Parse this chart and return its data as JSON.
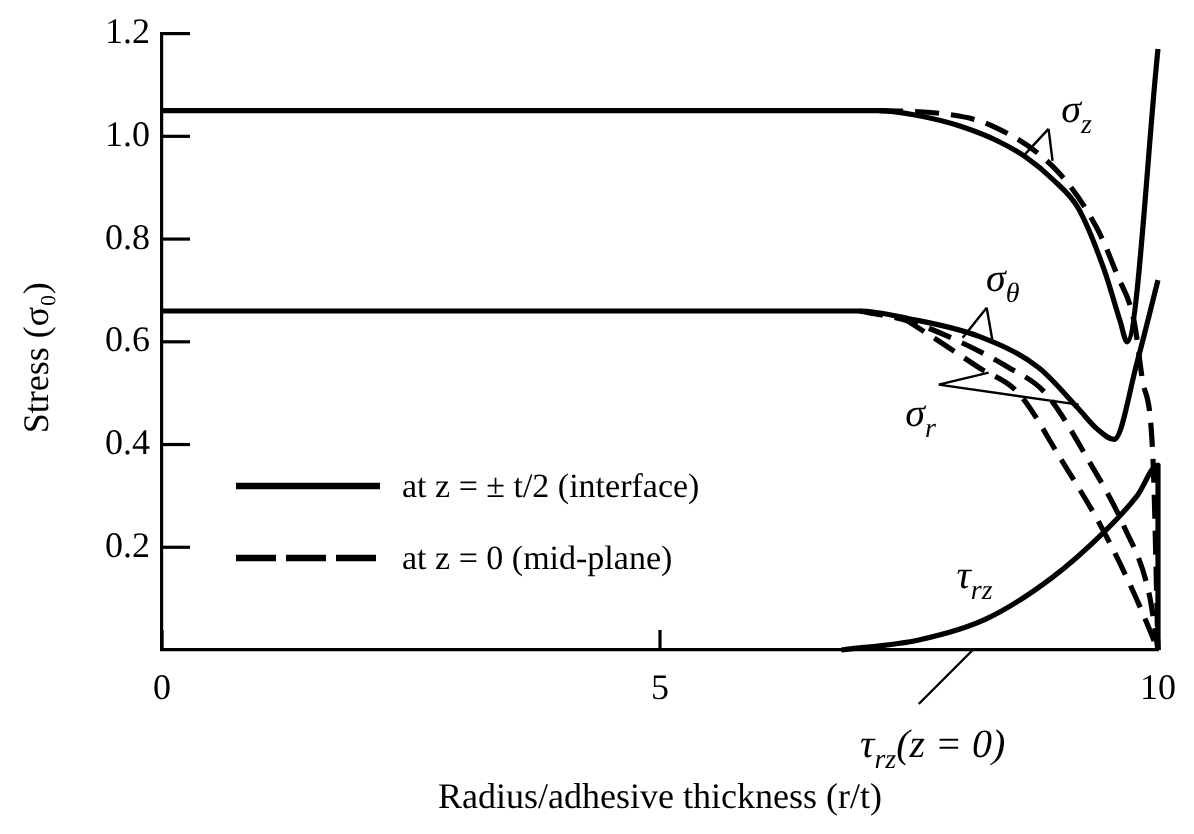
{
  "chart_data": {
    "type": "line",
    "xlabel": "Radius/adhesive thickness (r/t)",
    "ylabel": "Stress (σ₀)",
    "xlim": [
      0,
      10
    ],
    "xticks": [
      0,
      5,
      10
    ],
    "ylim": [
      0,
      1.2
    ],
    "yticks": [
      0.2,
      0.4,
      0.6,
      0.8,
      {
        "value": 1,
        "label": "1.0"
      },
      1.2
    ],
    "legend": "bottom left",
    "marker": "none",
    "series": [
      {
        "name": "at z = ± t/2 (interface)",
        "color": "#000000",
        "line_style": "solid",
        "x": [
          0,
          7.2,
          7.6,
          8.01,
          8.4,
          8.67,
          8.95,
          9.2,
          9.46,
          9.62,
          9.69,
          10
        ],
        "values": [
          1.05,
          1.05,
          1.04,
          1.02,
          0.99,
          0.96,
          0.915,
          0.86,
          0.74,
          0.64,
          0.6,
          1.17
        ]
      },
      {
        "color": "#000000",
        "line_style": "solid",
        "x": [
          0,
          7.0,
          7.5,
          8.21,
          8.8,
          9.2,
          9.39,
          9.56,
          9.79,
          10
        ],
        "values": [
          0.66,
          0.66,
          0.645,
          0.61,
          0.55,
          0.47,
          0.43,
          0.41,
          0.56,
          0.72
        ]
      },
      {
        "color": "#000000",
        "line_style": "solid",
        "x": [
          6.82,
          7.61,
          8.27,
          8.93,
          9.46,
          9.79,
          10,
          10
        ],
        "values": [
          0,
          0.02,
          0.06,
          0.14,
          0.23,
          0.3,
          0.36,
          0
        ]
      },
      {
        "name": "at z = 0 (mid-plane)",
        "color": "#000000",
        "line_style": "dashed",
        "x": [
          7.2,
          7.8,
          8.34,
          9.0,
          9.39,
          9.59,
          9.76,
          9.84,
          9.95,
          10
        ],
        "values": [
          1.05,
          1.045,
          1.02,
          0.93,
          0.82,
          0.73,
          0.64,
          0.53,
          0.37,
          0
        ]
      },
      {
        "color": "#000000",
        "line_style": "dashed",
        "x": [
          7.0,
          7.5,
          8.01,
          8.5,
          8.87,
          9.3,
          9.66,
          9.91,
          10
        ],
        "values": [
          0.66,
          0.64,
          0.6,
          0.55,
          0.5,
          0.37,
          0.24,
          0.11,
          0
        ]
      },
      {
        "color": "#000000",
        "line_style": "dashed",
        "x": [
          7.45,
          7.81,
          8.2,
          8.6,
          9.03,
          9.43,
          9.76,
          10
        ],
        "values": [
          0.645,
          0.6,
          0.55,
          0.5,
          0.37,
          0.24,
          0.11,
          0
        ]
      }
    ],
    "annotations": [
      {
        "text": "σ$_{z}$",
        "x": 8.64,
        "y": 0.96
      },
      {
        "text": "σ$_{θ}$",
        "x": 8.34,
        "y": 0.6
      },
      {
        "text": "σ$_{r}$",
        "x": 8.3,
        "y": 0.54
      },
      {
        "text": "τ$_{rz}$",
        "x": 8.6,
        "y": 0.1
      },
      "τ$_{rz}$(z = 0)"
    ]
  }
}
